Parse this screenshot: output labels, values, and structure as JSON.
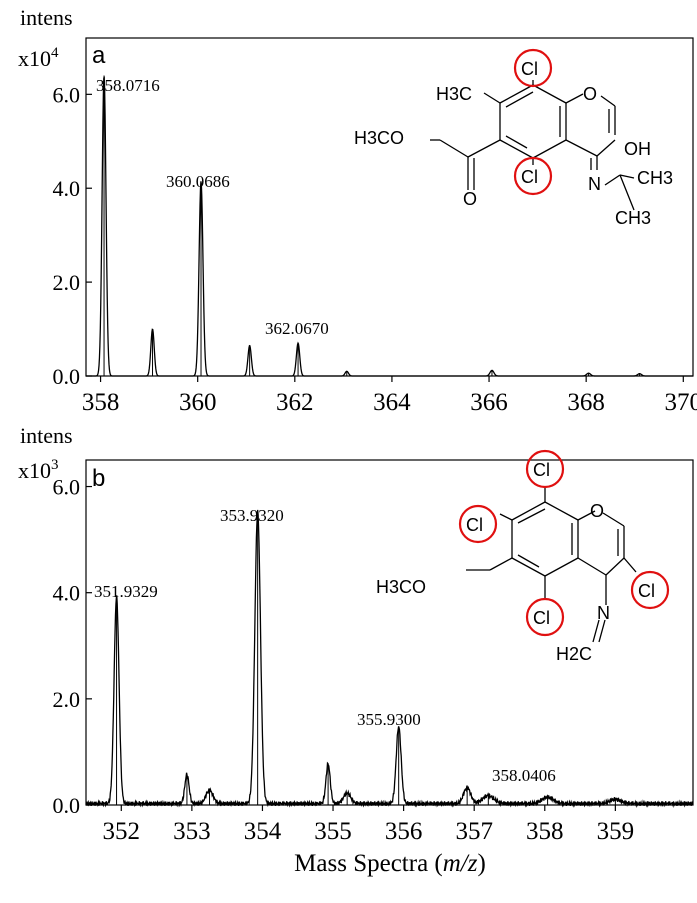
{
  "x_title": "Mass Spectra (",
  "x_title_unit": "m/z",
  "x_title_close": ")",
  "chart_data": [
    {
      "type": "line",
      "panel_label": "a",
      "y_title": "intens",
      "y_scale_label": "x10",
      "y_scale_exp": "4",
      "xlim": [
        357.7,
        370.2
      ],
      "ylim": [
        0,
        7.2
      ],
      "x_ticks": [
        358,
        360,
        362,
        364,
        366,
        368,
        370
      ],
      "x_tick_labels": [
        "358",
        "360",
        "362",
        "364",
        "366",
        "368",
        "370"
      ],
      "y_ticks": [
        0,
        2,
        4,
        6
      ],
      "y_tick_labels": [
        "0.0",
        "2.0",
        "4.0",
        "6.0"
      ],
      "peaks": [
        {
          "mz": 358.0716,
          "intensity": 6.4,
          "width": 0.04
        },
        {
          "mz": 359.07,
          "intensity": 1.0,
          "width": 0.035
        },
        {
          "mz": 360.0686,
          "intensity": 4.15,
          "width": 0.04
        },
        {
          "mz": 361.07,
          "intensity": 0.65,
          "width": 0.035
        },
        {
          "mz": 362.067,
          "intensity": 0.7,
          "width": 0.035
        },
        {
          "mz": 363.07,
          "intensity": 0.1,
          "width": 0.035
        },
        {
          "mz": 366.06,
          "intensity": 0.12,
          "width": 0.04
        },
        {
          "mz": 368.05,
          "intensity": 0.06,
          "width": 0.04
        },
        {
          "mz": 369.1,
          "intensity": 0.05,
          "width": 0.04
        }
      ],
      "noise": 0.0,
      "peak_labels": [
        "358.0716",
        "360.0686",
        "362.0670"
      ],
      "molecule": {
        "atoms": [
          "Cl",
          "H3C",
          "H3CO",
          "OH",
          "O",
          "Cl",
          "N",
          "CH3",
          "CH3",
          "O"
        ]
      }
    },
    {
      "type": "line",
      "panel_label": "b",
      "y_title": "intens",
      "y_scale_label": "x10",
      "y_scale_exp": "3",
      "xlim": [
        351.5,
        360.1
      ],
      "ylim": [
        0,
        6.5
      ],
      "x_ticks": [
        352,
        353,
        354,
        355,
        356,
        357,
        358,
        359
      ],
      "x_tick_labels": [
        "352",
        "353",
        "354",
        "355",
        "356",
        "357",
        "358",
        "359"
      ],
      "y_ticks": [
        0,
        2,
        4,
        6
      ],
      "y_tick_labels": [
        "0.0",
        "2.0",
        "4.0",
        "6.0"
      ],
      "peaks": [
        {
          "mz": 351.9329,
          "intensity": 3.9,
          "width": 0.035
        },
        {
          "mz": 352.93,
          "intensity": 0.55,
          "width": 0.03
        },
        {
          "mz": 353.25,
          "intensity": 0.25,
          "width": 0.05
        },
        {
          "mz": 353.932,
          "intensity": 5.5,
          "width": 0.04
        },
        {
          "mz": 354.93,
          "intensity": 0.75,
          "width": 0.03
        },
        {
          "mz": 355.2,
          "intensity": 0.2,
          "width": 0.05
        },
        {
          "mz": 355.93,
          "intensity": 1.45,
          "width": 0.035
        },
        {
          "mz": 356.9,
          "intensity": 0.3,
          "width": 0.05
        },
        {
          "mz": 357.2,
          "intensity": 0.15,
          "width": 0.08
        },
        {
          "mz": 358.04,
          "intensity": 0.12,
          "width": 0.08
        },
        {
          "mz": 359.0,
          "intensity": 0.08,
          "width": 0.08
        }
      ],
      "noise": 0.09,
      "peak_labels": [
        "351.9329",
        "353.9320",
        "355.9300",
        "358.0406"
      ],
      "molecule": {
        "atoms": [
          "Cl",
          "Cl",
          "O",
          "H3CO",
          "Cl",
          "Cl",
          "N",
          "H2C"
        ]
      }
    }
  ]
}
